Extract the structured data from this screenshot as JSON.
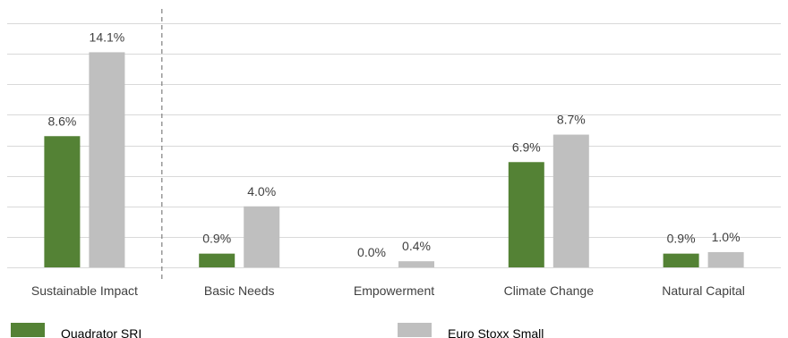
{
  "chart_data": {
    "type": "bar",
    "categories": [
      "Sustainable Impact",
      "Basic Needs",
      "Empowerment",
      "Climate Change",
      "Natural Capital"
    ],
    "series": [
      {
        "name": "Quadrator SRI",
        "values": [
          8.6,
          0.9,
          0.0,
          6.9,
          0.9
        ],
        "labels": [
          "8.6%",
          "0.9%",
          "0.0%",
          "6.9%",
          "0.9%"
        ],
        "color": "#548235"
      },
      {
        "name": "Euro Stoxx Small",
        "values": [
          14.1,
          4.0,
          0.4,
          8.7,
          1.0
        ],
        "labels": [
          "14.1%",
          "4.0%",
          "0.4%",
          "8.7%",
          "1.0%"
        ],
        "color": "#bfbfbf"
      }
    ],
    "ylim": [
      0,
      16
    ],
    "grid": true,
    "legend_position": "bottom",
    "divider_after_category": 0
  },
  "legend_colors": {
    "Quadrator SRI": "#548235",
    "Euro Stoxx Small": "#bfbfbf"
  }
}
